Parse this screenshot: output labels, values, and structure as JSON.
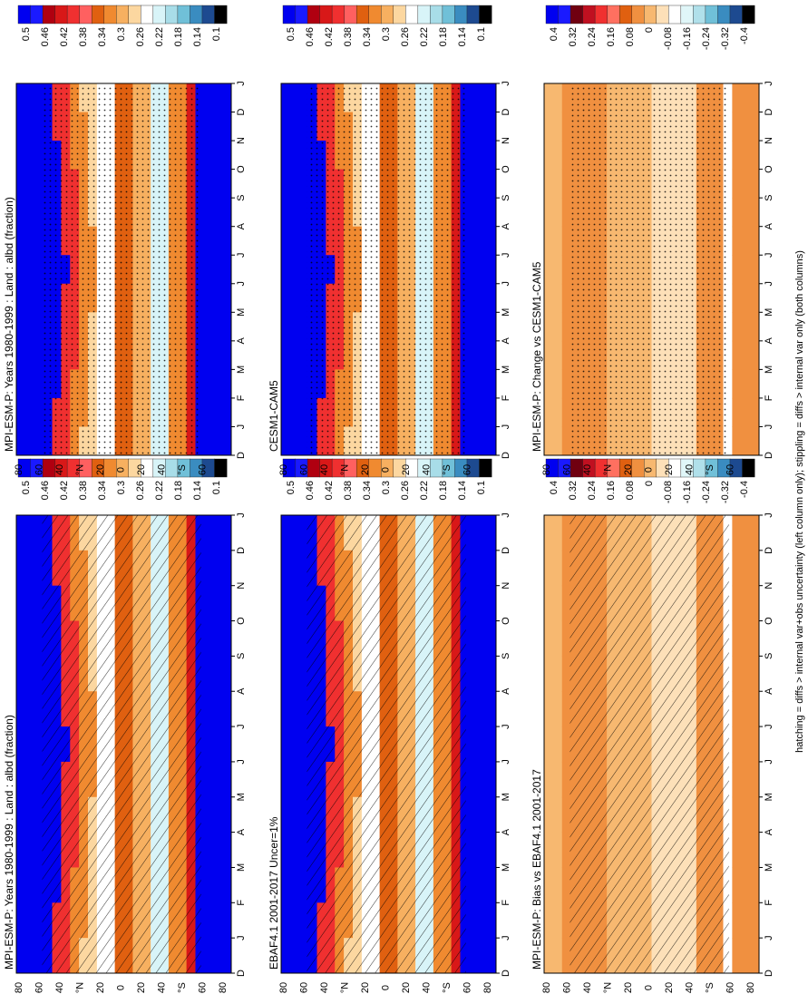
{
  "figure": {
    "footer": "hatching = diffs > internal var+obs uncertainty (left column only); stippling = diffs > internal var only (both columns)"
  },
  "months": [
    "D",
    "J",
    "F",
    "M",
    "A",
    "M",
    "J",
    "J",
    "A",
    "S",
    "O",
    "N",
    "D",
    "J"
  ],
  "lat_ticks": [
    "80",
    "60",
    "40",
    "°N",
    "20",
    "0",
    "20",
    "40",
    "°S",
    "60",
    "80"
  ],
  "colors": {
    "abs_scale": [
      "#0000f0",
      "#1a1aff",
      "#b00010",
      "#d81818",
      "#f03030",
      "#ff6060",
      "#e06010",
      "#f08a30",
      "#f7b060",
      "#fcd7a0",
      "#ffffff",
      "#d8f4f8",
      "#a8dde8",
      "#70c0d8",
      "#3a8cc0",
      "#1d4a90",
      "#000000"
    ],
    "diff_scale": [
      "#0000f0",
      "#1a1aff",
      "#700010",
      "#c01020",
      "#f03030",
      "#ff7060",
      "#e06010",
      "#f09040",
      "#f7b870",
      "#fde0b8",
      "#ffffff",
      "#e0f6f8",
      "#b0e0ea",
      "#70c0d8",
      "#3a8cc0",
      "#1d4a90",
      "#000000"
    ]
  },
  "chart_data": [
    {
      "type": "heatmap",
      "id": "a",
      "title": "MPI-ESM-P: Years 1980-1999 : Land : albd (fraction)",
      "x_ticks": [
        "D",
        "J",
        "F",
        "M",
        "A",
        "M",
        "J",
        "J",
        "A",
        "S",
        "O",
        "N",
        "D",
        "J"
      ],
      "y_ticks": [
        "80",
        "60",
        "40",
        "°N",
        "20",
        "0",
        "20",
        "40",
        "°S",
        "60",
        "80"
      ],
      "colorbar": {
        "labels": [
          "0.5",
          "0.46",
          "0.42",
          "0.38",
          "0.34",
          "0.3",
          "0.26",
          "0.22",
          "0.18",
          "0.14",
          "0.1"
        ],
        "range": [
          0.1,
          0.5
        ]
      },
      "scale": "abs",
      "overlay": "hatch"
    },
    {
      "type": "heatmap",
      "id": "b",
      "title": "MPI-ESM-P: Years 1980-1999 : Land : albd (fraction)",
      "x_ticks": [
        "D",
        "J",
        "F",
        "M",
        "A",
        "M",
        "J",
        "J",
        "A",
        "S",
        "O",
        "N",
        "D",
        "J"
      ],
      "y_ticks": [
        "80",
        "60",
        "40",
        "°N",
        "20",
        "0",
        "20",
        "40",
        "°S",
        "60",
        "80"
      ],
      "colorbar": {
        "labels": [
          "0.5",
          "0.46",
          "0.42",
          "0.38",
          "0.34",
          "0.3",
          "0.26",
          "0.22",
          "0.18",
          "0.14",
          "0.1"
        ],
        "range": [
          0.1,
          0.5
        ]
      },
      "scale": "abs",
      "overlay": "stipple"
    },
    {
      "type": "heatmap",
      "id": "c",
      "title": "EBAF4.1 2001-2017 Uncer=1%",
      "x_ticks": [
        "D",
        "J",
        "F",
        "M",
        "A",
        "M",
        "J",
        "J",
        "A",
        "S",
        "O",
        "N",
        "D",
        "J"
      ],
      "y_ticks": [
        "80",
        "60",
        "40",
        "°N",
        "20",
        "0",
        "20",
        "40",
        "°S",
        "60",
        "80"
      ],
      "colorbar": {
        "labels": [
          "0.5",
          "0.46",
          "0.42",
          "0.38",
          "0.34",
          "0.3",
          "0.26",
          "0.22",
          "0.18",
          "0.14",
          "0.1"
        ],
        "range": [
          0.1,
          0.5
        ]
      },
      "scale": "abs",
      "overlay": "hatch"
    },
    {
      "type": "heatmap",
      "id": "d",
      "title": "CESM1-CAM5",
      "x_ticks": [
        "D",
        "J",
        "F",
        "M",
        "A",
        "M",
        "J",
        "J",
        "A",
        "S",
        "O",
        "N",
        "D",
        "J"
      ],
      "y_ticks": [
        "80",
        "60",
        "40",
        "°N",
        "20",
        "0",
        "20",
        "40",
        "°S",
        "60",
        "80"
      ],
      "colorbar": {
        "labels": [
          "0.5",
          "0.46",
          "0.42",
          "0.38",
          "0.34",
          "0.3",
          "0.26",
          "0.22",
          "0.18",
          "0.14",
          "0.1"
        ],
        "range": [
          0.1,
          0.5
        ]
      },
      "scale": "abs",
      "overlay": "stipple"
    },
    {
      "type": "heatmap",
      "id": "e",
      "title": "MPI-ESM-P: Bias vs EBAF4.1 2001-2017",
      "x_ticks": [
        "D",
        "J",
        "F",
        "M",
        "A",
        "M",
        "J",
        "J",
        "A",
        "S",
        "O",
        "N",
        "D",
        "J"
      ],
      "y_ticks": [
        "80",
        "60",
        "40",
        "°N",
        "20",
        "0",
        "20",
        "40",
        "°S",
        "60",
        "80"
      ],
      "colorbar": {
        "labels": [
          "0.4",
          "0.32",
          "0.24",
          "0.16",
          "0.08",
          "0",
          "-0.08",
          "-0.16",
          "-0.24",
          "-0.32",
          "-0.4"
        ],
        "range": [
          -0.4,
          0.4
        ]
      },
      "scale": "diff",
      "overlay": "hatch"
    },
    {
      "type": "heatmap",
      "id": "f",
      "title": "MPI-ESM-P: Change vs CESM1-CAM5",
      "x_ticks": [
        "D",
        "J",
        "F",
        "M",
        "A",
        "M",
        "J",
        "J",
        "A",
        "S",
        "O",
        "N",
        "D",
        "J"
      ],
      "y_ticks": [
        "80",
        "60",
        "40",
        "°N",
        "20",
        "0",
        "20",
        "40",
        "°S",
        "60",
        "80"
      ],
      "colorbar": {
        "labels": [
          "0.4",
          "0.32",
          "0.24",
          "0.16",
          "0.08",
          "0",
          "-0.08",
          "-0.16",
          "-0.24",
          "-0.32",
          "-0.4"
        ],
        "range": [
          -0.4,
          0.4
        ]
      },
      "scale": "diff",
      "overlay": "stipple"
    }
  ]
}
